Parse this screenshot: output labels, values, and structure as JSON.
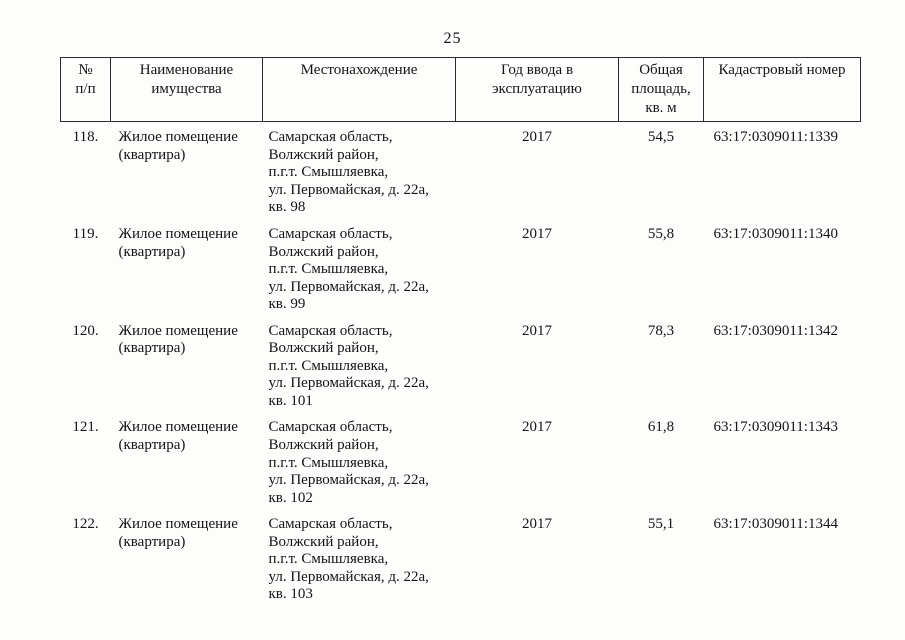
{
  "page": {
    "number": "25"
  },
  "table": {
    "headers": [
      "№\nп/п",
      "Наименование\nимущества",
      "Местонахождение",
      "Год ввода в\nэксплуатацию",
      "Общая\nплощадь,\nкв. м",
      "Кадастровый номер"
    ],
    "rows": [
      {
        "num": "118.",
        "name": "Жилое помещение\n(квартира)",
        "location": "Самарская область,\nВолжский район,\nп.г.т. Смышляевка,\nул. Первомайская, д. 22а,\nкв. 98",
        "year": "2017",
        "area": "54,5",
        "cadastral": "63:17:0309011:1339"
      },
      {
        "num": "119.",
        "name": "Жилое помещение\n(квартира)",
        "location": "Самарская область,\nВолжский район,\nп.г.т. Смышляевка,\nул. Первомайская, д. 22а,\nкв. 99",
        "year": "2017",
        "area": "55,8",
        "cadastral": "63:17:0309011:1340"
      },
      {
        "num": "120.",
        "name": "Жилое помещение\n(квартира)",
        "location": "Самарская область,\nВолжский район,\nп.г.т. Смышляевка,\nул. Первомайская, д. 22а,\nкв. 101",
        "year": "2017",
        "area": "78,3",
        "cadastral": "63:17:0309011:1342"
      },
      {
        "num": "121.",
        "name": "Жилое помещение\n(квартира)",
        "location": "Самарская область,\nВолжский район,\nп.г.т. Смышляевка,\nул. Первомайская, д. 22а,\nкв. 102",
        "year": "2017",
        "area": "61,8",
        "cadastral": "63:17:0309011:1343"
      },
      {
        "num": "122.",
        "name": "Жилое помещение\n(квартира)",
        "location": "Самарская область,\nВолжский район,\nп.г.т. Смышляевка,\nул. Первомайская, д. 22а,\nкв. 103",
        "year": "2017",
        "area": "55,1",
        "cadastral": "63:17:0309011:1344"
      }
    ]
  }
}
